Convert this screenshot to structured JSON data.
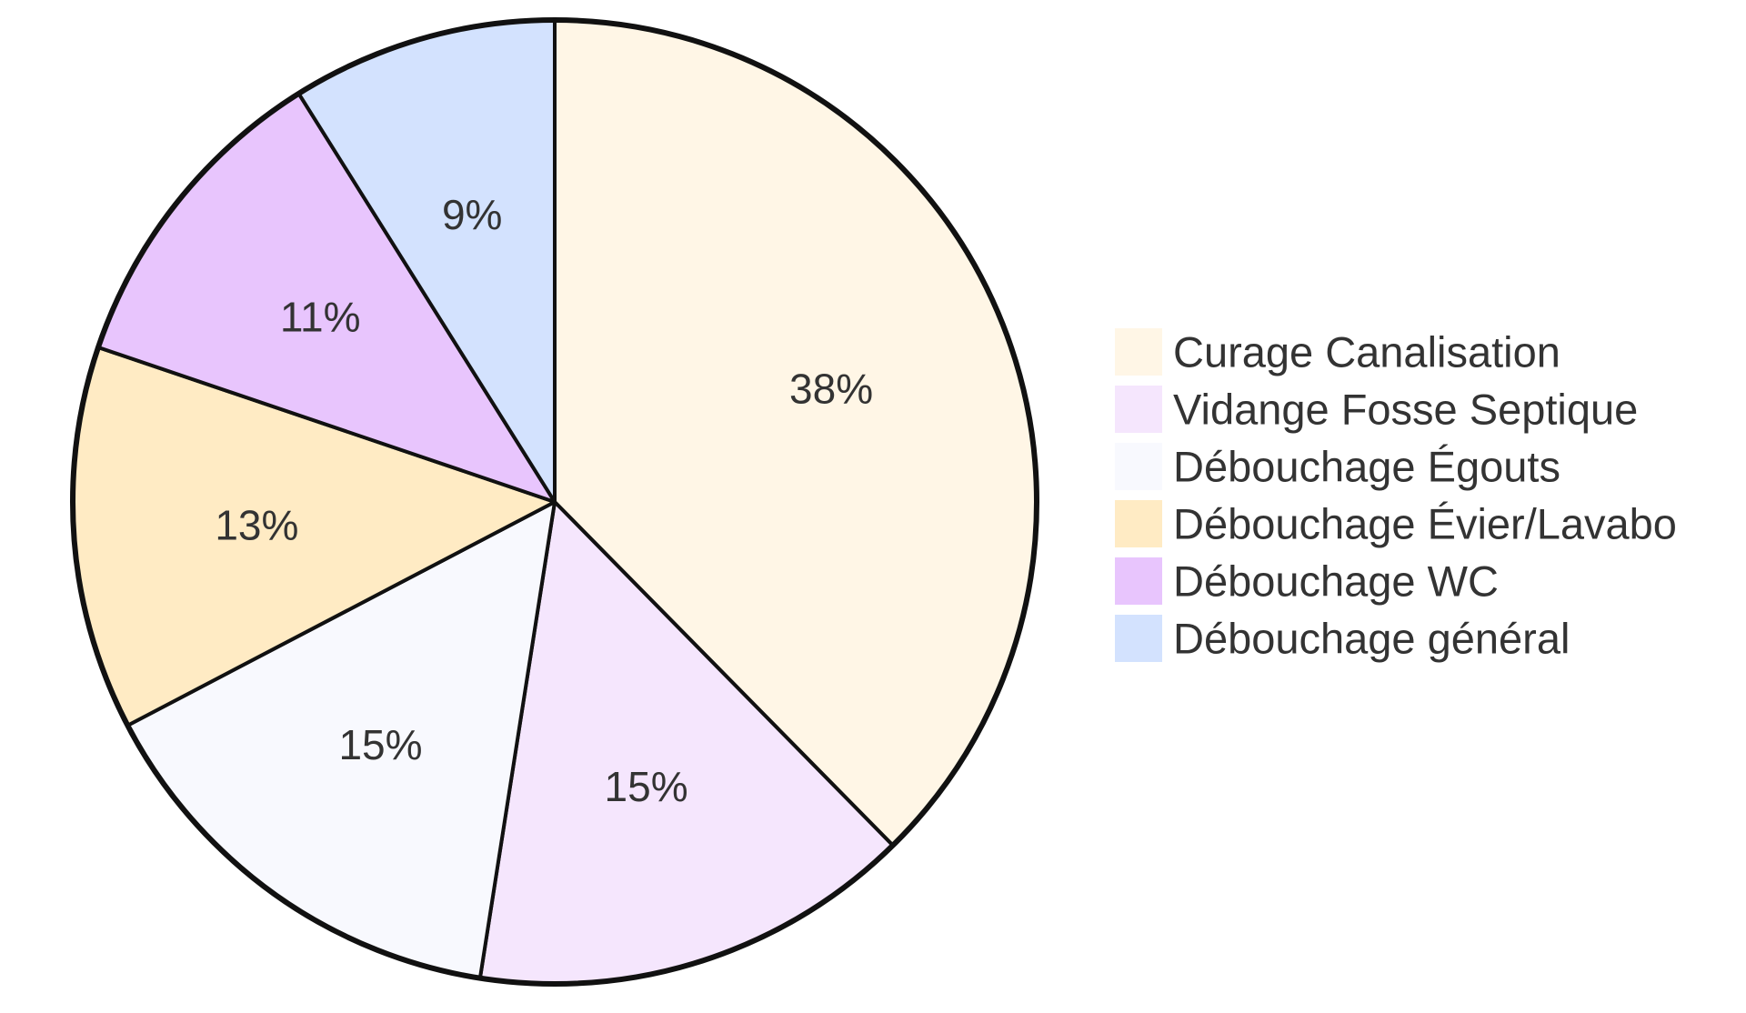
{
  "chart_data": {
    "type": "pie",
    "title": "",
    "slices": [
      {
        "label": "Curage Canalisation",
        "value": 38,
        "display": "38%",
        "color": "#FFF6E6"
      },
      {
        "label": "Vidange Fosse Septique",
        "value": 15,
        "display": "15%",
        "color": "#F5E6FD"
      },
      {
        "label": "Débouchage Égouts",
        "value": 15,
        "display": "15%",
        "color": "#F8F9FE"
      },
      {
        "label": "Débouchage Évier/Lavabo",
        "value": 13,
        "display": "13%",
        "color": "#FFEBC4"
      },
      {
        "label": "Débouchage WC",
        "value": 11,
        "display": "11%",
        "color": "#E8C5FD"
      },
      {
        "label": "Débouchage général",
        "value": 9,
        "display": "9%",
        "color": "#D3E2FE"
      }
    ],
    "start_angle": "top, clockwise",
    "legend_position": "right",
    "outline_color": "#111111"
  }
}
